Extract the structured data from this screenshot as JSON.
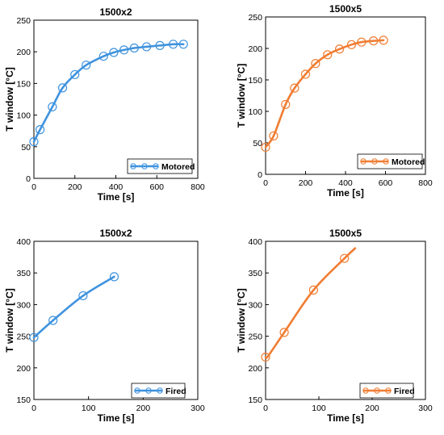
{
  "chart_data": [
    {
      "type": "line",
      "title": "1500x2",
      "xlabel": "Time [s]",
      "ylabel": "T window [°C]",
      "xlim": [
        0,
        800
      ],
      "ylim": [
        0,
        250
      ],
      "xticks": [
        0,
        200,
        400,
        600,
        800
      ],
      "yticks": [
        0,
        50,
        100,
        150,
        200,
        250
      ],
      "legend_position": "bottom-right",
      "series": [
        {
          "name": "Motored",
          "color": "#3f93de",
          "x": [
            0,
            30,
            90,
            140,
            200,
            255,
            340,
            390,
            440,
            490,
            550,
            615,
            680,
            730
          ],
          "y": [
            58,
            77,
            113,
            143,
            164,
            179,
            193,
            199,
            203,
            206,
            208,
            210,
            212,
            212
          ],
          "markers": true
        }
      ]
    },
    {
      "type": "line",
      "title": "1500x5",
      "xlabel": "Time [s]",
      "ylabel": "T window [°C]",
      "xlim": [
        0,
        800
      ],
      "ylim": [
        0,
        250
      ],
      "xticks": [
        0,
        200,
        400,
        600,
        800
      ],
      "yticks": [
        0,
        50,
        100,
        150,
        200,
        250
      ],
      "legend_position": "bottom-right",
      "series": [
        {
          "name": "Motored",
          "color": "#f07d33",
          "x": [
            0,
            40,
            100,
            145,
            200,
            250,
            310,
            370,
            430,
            480,
            540,
            590
          ],
          "y": [
            43,
            61,
            111,
            137,
            159,
            176,
            190,
            199,
            206,
            210,
            212,
            213
          ],
          "markers": true
        }
      ]
    },
    {
      "type": "line",
      "title": "1500x2",
      "xlabel": "Time [s]",
      "ylabel": "T window [°C]",
      "xlim": [
        0,
        300
      ],
      "ylim": [
        150,
        400
      ],
      "xticks": [
        0,
        100,
        200,
        300
      ],
      "yticks": [
        150,
        200,
        250,
        300,
        350,
        400
      ],
      "legend_position": "bottom-right",
      "series": [
        {
          "name": "Fired",
          "color": "#3f93de",
          "x": [
            0,
            35,
            90,
            147
          ],
          "y": [
            248,
            275,
            314,
            344
          ],
          "markers": true
        }
      ]
    },
    {
      "type": "line",
      "title": "1500x5",
      "xlabel": "Time [s]",
      "ylabel": "T window [°C]",
      "xlim": [
        0,
        300
      ],
      "ylim": [
        150,
        400
      ],
      "xticks": [
        0,
        100,
        200,
        300
      ],
      "yticks": [
        150,
        200,
        250,
        300,
        350,
        400
      ],
      "legend_position": "bottom-right",
      "series": [
        {
          "name": "Fired",
          "color": "#f07d33",
          "x": [
            0,
            5,
            35,
            90,
            148,
            168
          ],
          "y": [
            217,
            219,
            256,
            323,
            373,
            389
          ],
          "markers": true,
          "marker_indices": [
            0,
            2,
            3,
            4
          ]
        }
      ]
    }
  ]
}
